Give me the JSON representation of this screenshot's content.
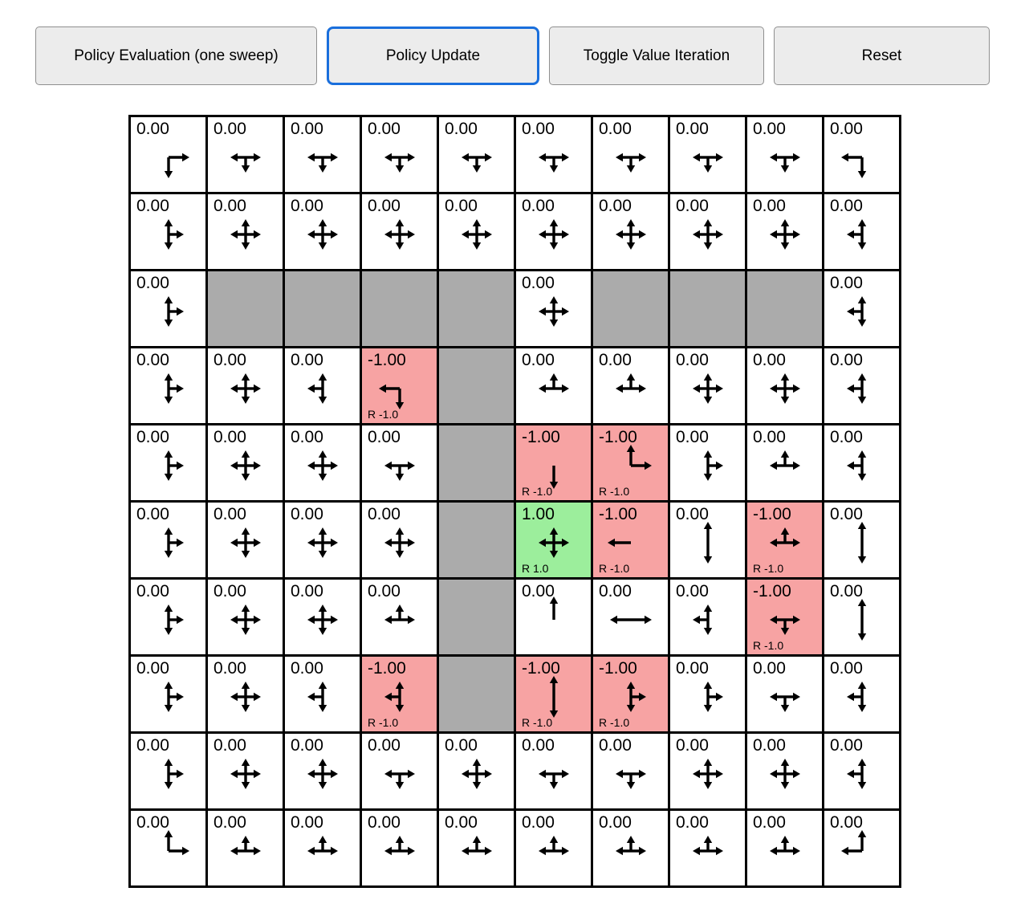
{
  "toolbar": {
    "buttons": [
      {
        "label": "Policy Evaluation (one sweep)",
        "active": false
      },
      {
        "label": "Policy Update",
        "active": true
      },
      {
        "label": "Toggle Value Iteration",
        "active": false
      },
      {
        "label": "Reset",
        "active": false
      }
    ]
  },
  "colors": {
    "active_border": "#1a6fdc",
    "wall": "#ababab",
    "negative": "#f7a3a3",
    "positive": "#9cee9c",
    "grid_line": "#000000",
    "arrow": "#000000"
  },
  "grid": {
    "rows": 10,
    "cols": 10,
    "cells": [
      [
        {
          "value": "0.00",
          "arrows": "DR"
        },
        {
          "value": "0.00",
          "arrows": "LDR"
        },
        {
          "value": "0.00",
          "arrows": "LDR"
        },
        {
          "value": "0.00",
          "arrows": "LDR"
        },
        {
          "value": "0.00",
          "arrows": "LDR"
        },
        {
          "value": "0.00",
          "arrows": "LDR"
        },
        {
          "value": "0.00",
          "arrows": "LDR"
        },
        {
          "value": "0.00",
          "arrows": "LDR"
        },
        {
          "value": "0.00",
          "arrows": "LDR"
        },
        {
          "value": "0.00",
          "arrows": "LD"
        }
      ],
      [
        {
          "value": "0.00",
          "arrows": "UDR"
        },
        {
          "value": "0.00",
          "arrows": "UDLR"
        },
        {
          "value": "0.00",
          "arrows": "UDLR"
        },
        {
          "value": "0.00",
          "arrows": "UDLR"
        },
        {
          "value": "0.00",
          "arrows": "UDLR"
        },
        {
          "value": "0.00",
          "arrows": "UDLR"
        },
        {
          "value": "0.00",
          "arrows": "UDLR"
        },
        {
          "value": "0.00",
          "arrows": "UDLR"
        },
        {
          "value": "0.00",
          "arrows": "UDLR"
        },
        {
          "value": "0.00",
          "arrows": "UDL"
        }
      ],
      [
        {
          "value": "0.00",
          "arrows": "UDR"
        },
        {
          "type": "wall"
        },
        {
          "type": "wall"
        },
        {
          "type": "wall"
        },
        {
          "type": "wall"
        },
        {
          "value": "0.00",
          "arrows": "UDLR"
        },
        {
          "type": "wall"
        },
        {
          "type": "wall"
        },
        {
          "type": "wall"
        },
        {
          "value": "0.00",
          "arrows": "UDL"
        }
      ],
      [
        {
          "value": "0.00",
          "arrows": "UDR"
        },
        {
          "value": "0.00",
          "arrows": "UDLR"
        },
        {
          "value": "0.00",
          "arrows": "UDL"
        },
        {
          "value": "-1.00",
          "reward": "R -1.0",
          "type": "negative",
          "arrows": "LD"
        },
        {
          "type": "wall"
        },
        {
          "value": "0.00",
          "arrows": "ULR"
        },
        {
          "value": "0.00",
          "arrows": "ULR"
        },
        {
          "value": "0.00",
          "arrows": "UDLR"
        },
        {
          "value": "0.00",
          "arrows": "UDLR"
        },
        {
          "value": "0.00",
          "arrows": "UDL"
        }
      ],
      [
        {
          "value": "0.00",
          "arrows": "UDR"
        },
        {
          "value": "0.00",
          "arrows": "UDLR"
        },
        {
          "value": "0.00",
          "arrows": "UDLR"
        },
        {
          "value": "0.00",
          "arrows": "DLR"
        },
        {
          "type": "wall"
        },
        {
          "value": "-1.00",
          "reward": "R -1.0",
          "type": "negative",
          "arrows": "D"
        },
        {
          "value": "-1.00",
          "reward": "R -1.0",
          "type": "negative",
          "arrows": "UR"
        },
        {
          "value": "0.00",
          "arrows": "UDR"
        },
        {
          "value": "0.00",
          "arrows": "ULR"
        },
        {
          "value": "0.00",
          "arrows": "UDL"
        }
      ],
      [
        {
          "value": "0.00",
          "arrows": "UDR"
        },
        {
          "value": "0.00",
          "arrows": "UDLR"
        },
        {
          "value": "0.00",
          "arrows": "UDLR"
        },
        {
          "value": "0.00",
          "arrows": "UDLR"
        },
        {
          "type": "wall"
        },
        {
          "value": "1.00",
          "reward": "R 1.0",
          "type": "positive",
          "arrows": "UDLR"
        },
        {
          "value": "-1.00",
          "reward": "R -1.0",
          "type": "negative",
          "arrows": "L"
        },
        {
          "value": "0.00",
          "arrows": "UD"
        },
        {
          "value": "-1.00",
          "reward": "R -1.0",
          "type": "negative",
          "arrows": "ULR"
        },
        {
          "value": "0.00",
          "arrows": "UD"
        }
      ],
      [
        {
          "value": "0.00",
          "arrows": "UDR"
        },
        {
          "value": "0.00",
          "arrows": "UDLR"
        },
        {
          "value": "0.00",
          "arrows": "UDLR"
        },
        {
          "value": "0.00",
          "arrows": "ULR"
        },
        {
          "type": "wall"
        },
        {
          "value": "0.00",
          "arrows": "U"
        },
        {
          "value": "0.00",
          "arrows": "LR"
        },
        {
          "value": "0.00",
          "arrows": "UDL"
        },
        {
          "value": "-1.00",
          "reward": "R -1.0",
          "type": "negative",
          "arrows": "DLR"
        },
        {
          "value": "0.00",
          "arrows": "UD"
        }
      ],
      [
        {
          "value": "0.00",
          "arrows": "UDR"
        },
        {
          "value": "0.00",
          "arrows": "UDLR"
        },
        {
          "value": "0.00",
          "arrows": "UDL"
        },
        {
          "value": "-1.00",
          "reward": "R -1.0",
          "type": "negative",
          "arrows": "UDL"
        },
        {
          "type": "wall"
        },
        {
          "value": "-1.00",
          "reward": "R -1.0",
          "type": "negative",
          "arrows": "UD"
        },
        {
          "value": "-1.00",
          "reward": "R -1.0",
          "type": "negative",
          "arrows": "UDR"
        },
        {
          "value": "0.00",
          "arrows": "UDR"
        },
        {
          "value": "0.00",
          "arrows": "DLR"
        },
        {
          "value": "0.00",
          "arrows": "UDL"
        }
      ],
      [
        {
          "value": "0.00",
          "arrows": "UDR"
        },
        {
          "value": "0.00",
          "arrows": "UDLR"
        },
        {
          "value": "0.00",
          "arrows": "UDLR"
        },
        {
          "value": "0.00",
          "arrows": "DLR"
        },
        {
          "value": "0.00",
          "arrows": "UDLR"
        },
        {
          "value": "0.00",
          "arrows": "DLR"
        },
        {
          "value": "0.00",
          "arrows": "DLR"
        },
        {
          "value": "0.00",
          "arrows": "UDLR"
        },
        {
          "value": "0.00",
          "arrows": "UDLR"
        },
        {
          "value": "0.00",
          "arrows": "UDL"
        }
      ],
      [
        {
          "value": "0.00",
          "arrows": "UR"
        },
        {
          "value": "0.00",
          "arrows": "ULR"
        },
        {
          "value": "0.00",
          "arrows": "ULR"
        },
        {
          "value": "0.00",
          "arrows": "ULR"
        },
        {
          "value": "0.00",
          "arrows": "ULR"
        },
        {
          "value": "0.00",
          "arrows": "ULR"
        },
        {
          "value": "0.00",
          "arrows": "ULR"
        },
        {
          "value": "0.00",
          "arrows": "ULR"
        },
        {
          "value": "0.00",
          "arrows": "ULR"
        },
        {
          "value": "0.00",
          "arrows": "UL"
        }
      ]
    ]
  }
}
